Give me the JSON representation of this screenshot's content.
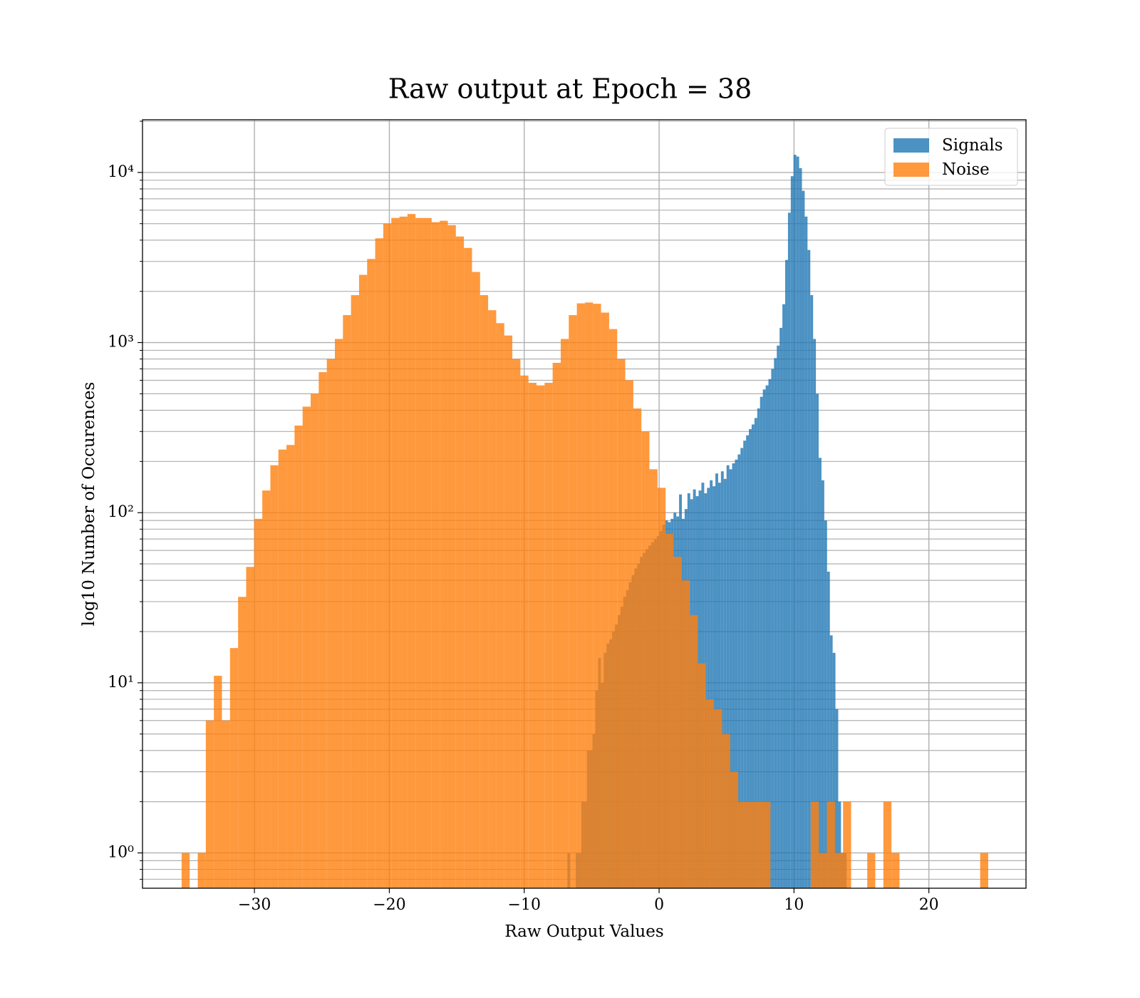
{
  "chart_data": {
    "type": "histogram",
    "title": "Raw output at Epoch = 38",
    "xlabel": "Raw Output Values",
    "ylabel": "log10 Number of Occurences",
    "xlim": [
      -38.3,
      27.2
    ],
    "ylim": [
      0.62,
      20400
    ],
    "log_y": true,
    "grid": true,
    "minor_grid": true,
    "legend": "upper right",
    "opacity": 0.8,
    "xticks": [
      {
        "value": -30,
        "label": "−30"
      },
      {
        "value": -20,
        "label": "−20"
      },
      {
        "value": -10,
        "label": "−10"
      },
      0,
      10,
      20
    ],
    "yticks": [
      {
        "value": 1,
        "label": "10⁰"
      },
      {
        "value": 10,
        "label": "10¹"
      },
      {
        "value": 100,
        "label": "10²"
      },
      {
        "value": 1000,
        "label": "10³"
      },
      {
        "value": 10000,
        "label": "10⁴"
      }
    ],
    "series": [
      {
        "name": "Signals",
        "color": "#1f77b4",
        "bins": [
          -6.8,
          -6.593,
          -6.386,
          -6.179,
          -5.972,
          -5.765,
          -5.558,
          -5.351,
          -5.144,
          -4.937,
          -4.73,
          -4.523,
          -4.316,
          -4.109,
          -3.902,
          -3.695,
          -3.488,
          -3.281,
          -3.074,
          -2.867,
          -2.66,
          -2.453,
          -2.246,
          -2.039,
          -1.832,
          -1.625,
          -1.418,
          -1.211,
          -1.004,
          -0.797,
          -0.59,
          -0.383,
          -0.176,
          0.031,
          0.238,
          0.445,
          0.652,
          0.859,
          1.066,
          1.273,
          1.48,
          1.687,
          1.894,
          2.101,
          2.308,
          2.515,
          2.722,
          2.929,
          3.136,
          3.343,
          3.55,
          3.757,
          3.964,
          4.171,
          4.378,
          4.585,
          4.792,
          4.999,
          5.206,
          5.413,
          5.62,
          5.827,
          6.034,
          6.241,
          6.448,
          6.655,
          6.862,
          7.069,
          7.276,
          7.483,
          7.69,
          7.897,
          8.104,
          8.311,
          8.518,
          8.725,
          8.932,
          9.139,
          9.346,
          9.553,
          9.76,
          9.967,
          10.174,
          10.381,
          10.588,
          10.795,
          11.002,
          11.209,
          11.416,
          11.623,
          11.83,
          12.037,
          12.244,
          12.451,
          12.658,
          12.865,
          13.072,
          13.279,
          13.486,
          13.693,
          13.9
        ],
        "values": [
          1,
          0,
          0,
          1,
          1,
          2,
          2,
          4,
          4,
          5,
          9,
          14,
          10,
          15,
          17,
          18,
          20,
          22,
          25,
          28,
          32,
          35,
          39,
          43,
          47,
          50,
          55,
          58,
          61,
          64,
          67,
          70,
          73,
          78,
          85,
          90,
          88,
          92,
          100,
          95,
          128,
          92,
          105,
          130,
          120,
          137,
          125,
          135,
          150,
          130,
          140,
          155,
          143,
          170,
          150,
          175,
          158,
          190,
          180,
          195,
          205,
          220,
          240,
          265,
          285,
          310,
          330,
          360,
          410,
          480,
          530,
          560,
          610,
          700,
          810,
          960,
          1220,
          1680,
          3060,
          5800,
          9500,
          12700,
          12400,
          10600,
          7800,
          5500,
          3500,
          1900,
          1050,
          500,
          210,
          155,
          90,
          45,
          19,
          15,
          7,
          2,
          1,
          1
        ]
      },
      {
        "name": "Noise",
        "color": "#ff7f0e",
        "bins": [
          -35.4,
          -34.802,
          -34.204,
          -33.606,
          -33.008,
          -32.41,
          -31.812,
          -31.214,
          -30.616,
          -30.018,
          -29.42,
          -28.822,
          -28.224,
          -27.626,
          -27.028,
          -26.43,
          -25.832,
          -25.234,
          -24.636,
          -24.038,
          -23.44,
          -22.842,
          -22.244,
          -21.646,
          -21.048,
          -20.45,
          -19.852,
          -19.254,
          -18.656,
          -18.058,
          -17.46,
          -16.862,
          -16.264,
          -15.666,
          -15.068,
          -14.47,
          -13.872,
          -13.274,
          -12.676,
          -12.078,
          -11.48,
          -10.882,
          -10.284,
          -9.686,
          -9.088,
          -8.49,
          -7.892,
          -7.294,
          -6.696,
          -6.098,
          -5.5,
          -4.902,
          -4.304,
          -3.706,
          -3.108,
          -2.51,
          -1.912,
          -1.314,
          -0.716,
          -0.118,
          0.48,
          1.078,
          1.676,
          2.274,
          2.872,
          3.47,
          4.068,
          4.666,
          5.264,
          5.862,
          6.46,
          7.058,
          7.656,
          8.254,
          8.852,
          9.45,
          10.048,
          10.646,
          11.244,
          11.842,
          12.44,
          13.038,
          13.636,
          14.234,
          14.832,
          15.43,
          16.028,
          16.626,
          17.224,
          17.822,
          18.42,
          19.018,
          19.616,
          20.214,
          20.812,
          21.41,
          22.008,
          22.606,
          23.204,
          23.802,
          24.4
        ],
        "values": [
          1,
          0,
          1,
          6,
          11,
          6,
          16,
          32,
          48,
          92,
          135,
          190,
          235,
          250,
          325,
          420,
          500,
          670,
          800,
          1050,
          1450,
          1900,
          2500,
          3100,
          4100,
          5000,
          5400,
          5500,
          5700,
          5400,
          5400,
          5100,
          5200,
          4900,
          4200,
          3600,
          2600,
          1900,
          1550,
          1300,
          1100,
          800,
          640,
          580,
          560,
          580,
          760,
          1050,
          1450,
          1700,
          1720,
          1690,
          1500,
          1200,
          800,
          600,
          410,
          300,
          180,
          140,
          75,
          55,
          40,
          25,
          13,
          8,
          7,
          5,
          3,
          2,
          2,
          2,
          2,
          0,
          0,
          0,
          0,
          0,
          2,
          1,
          2,
          1,
          2,
          0,
          0,
          1,
          0,
          2,
          1,
          0,
          0,
          0,
          0,
          0,
          0,
          0,
          0,
          0,
          0,
          1
        ]
      }
    ]
  }
}
